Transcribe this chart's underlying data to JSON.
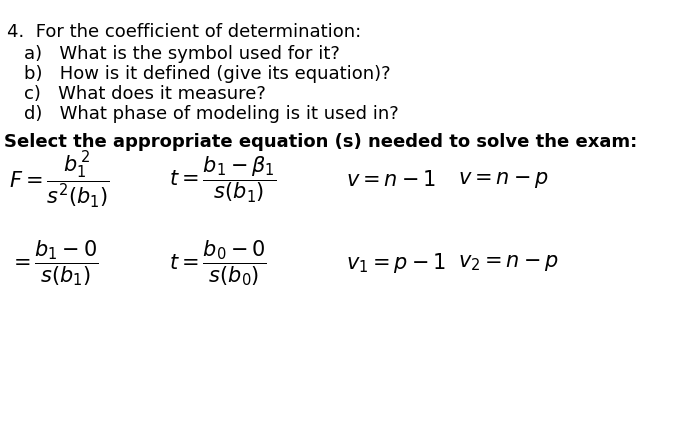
{
  "background_color": "#ffffff",
  "title_number": "4.",
  "intro_text": "For the coefficient of determination:",
  "questions": [
    "a)   What is the symbol used for it?",
    "b)   How is it defined (give its equation)?",
    "c)   What does it measure?",
    "d)   What phase of modeling is it used in?"
  ],
  "bold_heading": "Select the appropriate equation (s) needed to solve the exam:",
  "figsize": [
    7.0,
    4.38
  ],
  "dpi": 100
}
